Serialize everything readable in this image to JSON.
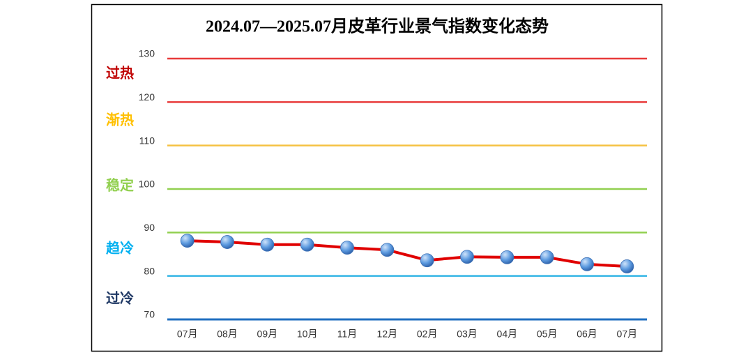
{
  "chart_data": {
    "type": "line",
    "title": "2024.07—2025.07月皮革行业景气指数变化态势",
    "categories": [
      "07月",
      "08月",
      "09月",
      "10月",
      "11月",
      "12月",
      "02月",
      "03月",
      "04月",
      "05月",
      "06月",
      "07月"
    ],
    "series": [
      {
        "name": "景气指数",
        "color": "#e00000",
        "marker_color": "#4f8fd6",
        "values": [
          88.1,
          87.8,
          87.2,
          87.2,
          86.5,
          86.0,
          83.6,
          84.4,
          84.3,
          84.3,
          82.7,
          82.2
        ]
      }
    ],
    "ylim": [
      70,
      130
    ],
    "yticks": [
      70,
      80,
      90,
      100,
      110,
      120,
      130
    ],
    "grid": true,
    "grid_colors": [
      "#1f6fc0",
      "#33b5e5",
      "#92d050",
      "#92d050",
      "#f5c242",
      "#e83a3a",
      "#e83a3a"
    ],
    "zones": [
      {
        "label": "过热",
        "color": "#c00000"
      },
      {
        "label": "渐热",
        "color": "#ffc000"
      },
      {
        "label": "稳定",
        "color": "#92d050"
      },
      {
        "label": "趋冷",
        "color": "#00b0f0"
      },
      {
        "label": "过冷",
        "color": "#1f3864"
      }
    ]
  }
}
